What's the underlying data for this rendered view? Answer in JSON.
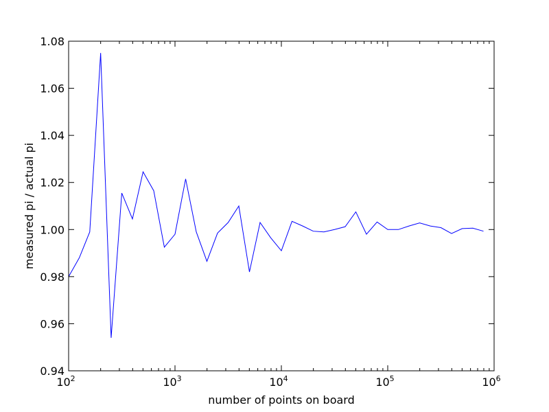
{
  "chart_data": {
    "type": "line",
    "title": "",
    "xlabel": "number of points on board",
    "ylabel": "measured pi / actual pi",
    "xscale": "log",
    "xlim": [
      100,
      1000000
    ],
    "ylim": [
      0.94,
      1.08
    ],
    "grid": false,
    "legend": "none",
    "x_ticks": [
      {
        "base": "10",
        "exp": "2",
        "value": 100
      },
      {
        "base": "10",
        "exp": "3",
        "value": 1000
      },
      {
        "base": "10",
        "exp": "4",
        "value": 10000
      },
      {
        "base": "10",
        "exp": "5",
        "value": 100000
      },
      {
        "base": "10",
        "exp": "6",
        "value": 1000000
      }
    ],
    "y_ticks": [
      "0.94",
      "0.96",
      "0.98",
      "1.00",
      "1.02",
      "1.04",
      "1.06",
      "1.08"
    ],
    "series": [
      {
        "color": "#0000ff",
        "x": [
          100,
          126,
          158,
          200,
          251,
          316,
          398,
          501,
          631,
          794,
          1000,
          1259,
          1585,
          1995,
          2512,
          3162,
          3981,
          5012,
          6310,
          7943,
          10000,
          12589,
          15849,
          19953,
          25119,
          31623,
          39811,
          50119,
          63096,
          79433,
          100000,
          125893,
          158489,
          199526,
          251189,
          316228,
          398107,
          501187,
          630957,
          794328
        ],
        "y": [
          0.98,
          0.988,
          0.999,
          1.075,
          0.954,
          1.0155,
          1.0045,
          1.0245,
          1.0165,
          0.9925,
          0.998,
          1.0215,
          0.999,
          0.9865,
          0.9985,
          1.003,
          1.01,
          0.982,
          1.003,
          0.9965,
          0.991,
          1.0035,
          1.0015,
          0.9993,
          0.999,
          1.0,
          1.0012,
          1.0075,
          0.998,
          1.0032,
          1.0,
          1.0,
          1.0015,
          1.0028,
          1.0015,
          1.0008,
          0.9983,
          1.0004,
          1.0006,
          0.9993
        ]
      }
    ]
  },
  "colors": {
    "line": "#0000ff",
    "axes": "#000000",
    "background": "#ffffff"
  }
}
